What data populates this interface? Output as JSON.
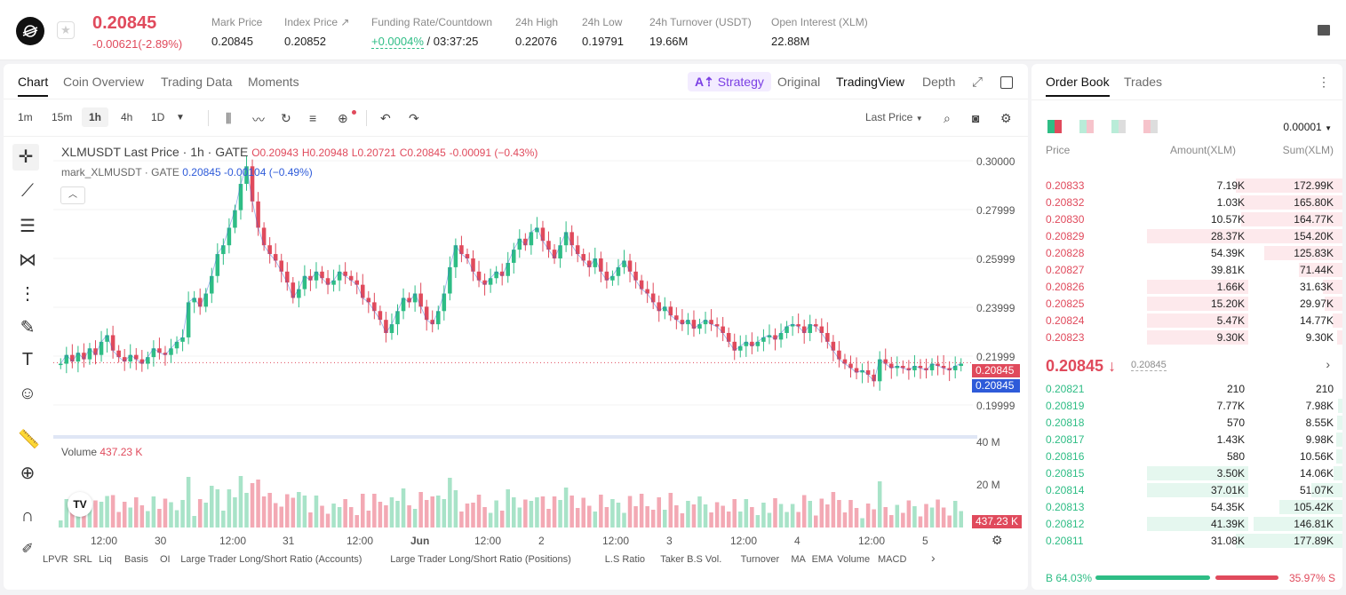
{
  "header": {
    "symbol_price": "0.20845",
    "change": "-0.00621(-2.89%)",
    "stats": [
      {
        "label": "Mark Price",
        "value": "0.20845"
      },
      {
        "label": "Index Price ↗",
        "value": "0.20852"
      },
      {
        "label": "Funding Rate/Countdown",
        "value_green": "+0.0004%",
        "value_rest": " / 03:37:25"
      },
      {
        "label": "24h High",
        "value": "0.22076"
      },
      {
        "label": "24h Low",
        "value": "0.19791"
      },
      {
        "label": "24h Turnover (USDT)",
        "value": "19.66M"
      },
      {
        "label": "Open Interest (XLM)",
        "value": "22.88M"
      }
    ]
  },
  "chart_tabs": {
    "chart": "Chart",
    "coin_overview": "Coin Overview",
    "trading_data": "Trading Data",
    "moments": "Moments",
    "strategy": "Strategy",
    "original": "Original",
    "tradingview": "TradingView",
    "depth": "Depth"
  },
  "toolbar": {
    "timeframes": [
      "1m",
      "15m",
      "1h",
      "4h",
      "1D"
    ],
    "active_timeframe": "1h",
    "price_type": "Last Price"
  },
  "legend": {
    "title": "XLMUSDT Last Price · 1h · GATE",
    "open": "O0.20943",
    "high": "H0.20948",
    "low": "L0.20721",
    "close": "C0.20845",
    "chg": "-0.00091 (−0.43%)",
    "mark_label": "mark_XLMUSDT · GATE",
    "mark_value": "0.20845",
    "mark_chg": "-0.00104 (−0.49%)"
  },
  "chart_data": {
    "type": "candlestick",
    "y_axis_ticks": [
      "0.30000",
      "0.27999",
      "0.25999",
      "0.23999",
      "0.21999",
      "0.19999"
    ],
    "y_range": [
      0.19,
      0.305
    ],
    "x_axis_ticks": [
      "12:00",
      "30",
      "12:00",
      "31",
      "12:00",
      "Jun",
      "12:00",
      "2",
      "12:00",
      "3",
      "12:00",
      "4",
      "12:00",
      "5"
    ],
    "last_price": "0.20845",
    "mark_price": "0.20845",
    "volume_label": "Volume",
    "volume_value": "437.23 K",
    "volume_ticks": [
      "40 M",
      "20 M"
    ],
    "volume_tag": "437.23 K",
    "closes": [
      0.208,
      0.212,
      0.209,
      0.213,
      0.21,
      0.215,
      0.212,
      0.218,
      0.221,
      0.214,
      0.211,
      0.209,
      0.212,
      0.21,
      0.208,
      0.211,
      0.215,
      0.213,
      0.212,
      0.215,
      0.218,
      0.22,
      0.236,
      0.238,
      0.234,
      0.24,
      0.248,
      0.258,
      0.262,
      0.27,
      0.278,
      0.29,
      0.298,
      0.282,
      0.27,
      0.262,
      0.258,
      0.255,
      0.25,
      0.245,
      0.238,
      0.242,
      0.248,
      0.246,
      0.25,
      0.247,
      0.244,
      0.246,
      0.25,
      0.248,
      0.246,
      0.244,
      0.238,
      0.236,
      0.232,
      0.228,
      0.222,
      0.226,
      0.232,
      0.238,
      0.236,
      0.24,
      0.234,
      0.228,
      0.226,
      0.232,
      0.24,
      0.252,
      0.262,
      0.258,
      0.256,
      0.25,
      0.246,
      0.244,
      0.247,
      0.25,
      0.248,
      0.254,
      0.26,
      0.265,
      0.262,
      0.268,
      0.27,
      0.264,
      0.26,
      0.256,
      0.262,
      0.268,
      0.262,
      0.258,
      0.255,
      0.252,
      0.256,
      0.25,
      0.246,
      0.248,
      0.252,
      0.255,
      0.25,
      0.246,
      0.242,
      0.24,
      0.236,
      0.232,
      0.234,
      0.23,
      0.228,
      0.226,
      0.228,
      0.224,
      0.226,
      0.228,
      0.226,
      0.225,
      0.222,
      0.218,
      0.214,
      0.216,
      0.218,
      0.216,
      0.218,
      0.22,
      0.221,
      0.219,
      0.222,
      0.225,
      0.226,
      0.225,
      0.222,
      0.226,
      0.225,
      0.222,
      0.218,
      0.214,
      0.21,
      0.208,
      0.206,
      0.204,
      0.205,
      0.203,
      0.2,
      0.21,
      0.208,
      0.206,
      0.207,
      0.206,
      0.205,
      0.207,
      0.206,
      0.205,
      0.208,
      0.207,
      0.206,
      0.205,
      0.207,
      0.208
    ]
  },
  "indicators": [
    "LPVR",
    "SRL",
    "Liq",
    "Basis",
    "OI",
    "Large Trader Long/Short Ratio (Accounts)",
    "Large Trader Long/Short Ratio (Positions)",
    "L.S Ratio",
    "Taker B.S Vol.",
    "Turnover",
    "MA",
    "EMA",
    "Volume",
    "MACD"
  ],
  "orderbook": {
    "tab_book": "Order Book",
    "tab_trades": "Trades",
    "precision": "0.00001",
    "col_price": "Price",
    "col_amount": "Amount(XLM)",
    "col_sum": "Sum(XLM)",
    "asks": [
      {
        "price": "0.20833",
        "amount": "7.19K",
        "sum": "172.99K",
        "a": 0.0,
        "s": 1.0
      },
      {
        "price": "0.20832",
        "amount": "1.03K",
        "sum": "165.80K",
        "a": 0.0,
        "s": 0.96
      },
      {
        "price": "0.20830",
        "amount": "10.57K",
        "sum": "164.77K",
        "a": 0.0,
        "s": 0.95
      },
      {
        "price": "0.20829",
        "amount": "28.37K",
        "sum": "154.20K",
        "a": 0.52,
        "s": 0.89
      },
      {
        "price": "0.20828",
        "amount": "54.39K",
        "sum": "125.83K",
        "a": 0.0,
        "s": 0.73
      },
      {
        "price": "0.20827",
        "amount": "39.81K",
        "sum": "71.44K",
        "a": 0.0,
        "s": 0.41
      },
      {
        "price": "0.20826",
        "amount": "1.66K",
        "sum": "31.63K",
        "a": 0.52,
        "s": 0.18
      },
      {
        "price": "0.20825",
        "amount": "15.20K",
        "sum": "29.97K",
        "a": 0.52,
        "s": 0.17
      },
      {
        "price": "0.20824",
        "amount": "5.47K",
        "sum": "14.77K",
        "a": 0.52,
        "s": 0.09
      },
      {
        "price": "0.20823",
        "amount": "9.30K",
        "sum": "9.30K",
        "a": 0.52,
        "s": 0.05
      }
    ],
    "mid_price": "0.20845 ↓",
    "mid_mark": "0.20845",
    "bids": [
      {
        "price": "0.20821",
        "amount": "210",
        "sum": "210",
        "a": 0.0,
        "s": 0.0
      },
      {
        "price": "0.20819",
        "amount": "7.77K",
        "sum": "7.98K",
        "a": 0.0,
        "s": 0.04
      },
      {
        "price": "0.20818",
        "amount": "570",
        "sum": "8.55K",
        "a": 0.0,
        "s": 0.05
      },
      {
        "price": "0.20817",
        "amount": "1.43K",
        "sum": "9.98K",
        "a": 0.0,
        "s": 0.06
      },
      {
        "price": "0.20816",
        "amount": "580",
        "sum": "10.56K",
        "a": 0.0,
        "s": 0.06
      },
      {
        "price": "0.20815",
        "amount": "3.50K",
        "sum": "14.06K",
        "a": 0.52,
        "s": 0.08
      },
      {
        "price": "0.20814",
        "amount": "37.01K",
        "sum": "51.07K",
        "a": 0.52,
        "s": 0.29
      },
      {
        "price": "0.20813",
        "amount": "54.35K",
        "sum": "105.42K",
        "a": 0.0,
        "s": 0.59
      },
      {
        "price": "0.20812",
        "amount": "41.39K",
        "sum": "146.81K",
        "a": 0.52,
        "s": 0.83
      },
      {
        "price": "0.20811",
        "amount": "31.08K",
        "sum": "177.89K",
        "a": 0.0,
        "s": 1.0
      }
    ],
    "buy_ratio": "B 64.03%",
    "sell_ratio": "35.97% S",
    "buy_fraction": 0.6403
  },
  "colors": {
    "up": "#2ebd85",
    "down": "#e04a5c",
    "mark": "#2e5bd9"
  }
}
